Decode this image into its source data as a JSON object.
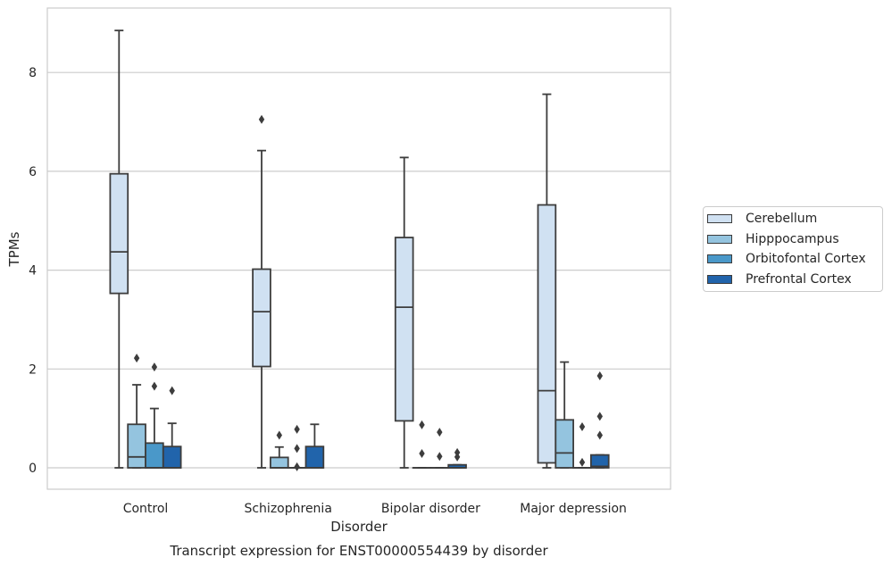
{
  "chart_data": {
    "type": "box",
    "title": "",
    "caption": "Transcript expression for ENST00000554439 by disorder",
    "xlabel": "Disorder",
    "ylabel": "TPMs",
    "ylim": [
      -0.42,
      9.3
    ],
    "yticks": [
      0,
      2,
      4,
      6,
      8
    ],
    "categories": [
      "Control",
      "Schizophrenia",
      "Bipolar disorder",
      "Major depression"
    ],
    "grid": "horizontal",
    "legend_position": "right",
    "series": [
      {
        "name": "Cerebellum",
        "color": "#d0e1f2",
        "boxes": [
          {
            "whisker_low": 0,
            "q1": 3.53,
            "median": 4.37,
            "q3": 5.95,
            "whisker_high": 8.85,
            "outliers": []
          },
          {
            "whisker_low": 0,
            "q1": 2.05,
            "median": 3.16,
            "q3": 4.02,
            "whisker_high": 6.42,
            "outliers": [
              7.05
            ]
          },
          {
            "whisker_low": 0,
            "q1": 0.95,
            "median": 3.25,
            "q3": 4.66,
            "whisker_high": 6.28,
            "outliers": []
          },
          {
            "whisker_low": 0,
            "q1": 0.1,
            "median": 1.56,
            "q3": 5.32,
            "whisker_high": 7.56,
            "outliers": []
          }
        ]
      },
      {
        "name": "Hipppocampus",
        "color": "#94c4df",
        "boxes": [
          {
            "whisker_low": 0,
            "q1": 0,
            "median": 0.22,
            "q3": 0.88,
            "whisker_high": 1.68,
            "outliers": [
              2.22
            ]
          },
          {
            "whisker_low": 0,
            "q1": 0,
            "median": 0,
            "q3": 0.21,
            "whisker_high": 0.42,
            "outliers": [
              0.66
            ]
          },
          {
            "whisker_low": 0,
            "q1": 0,
            "median": 0,
            "q3": 0,
            "whisker_high": 0,
            "outliers": [
              0.87,
              0.29
            ]
          },
          {
            "whisker_low": 0,
            "q1": 0,
            "median": 0.3,
            "q3": 0.97,
            "whisker_high": 2.14,
            "outliers": []
          }
        ]
      },
      {
        "name": "Orbitofontal Cortex",
        "color": "#4a98c9",
        "boxes": [
          {
            "whisker_low": 0,
            "q1": 0,
            "median": 0,
            "q3": 0.5,
            "whisker_high": 1.2,
            "outliers": [
              2.04,
              1.65
            ]
          },
          {
            "whisker_low": 0,
            "q1": 0,
            "median": 0,
            "q3": 0,
            "whisker_high": 0,
            "outliers": [
              0.78,
              0.39,
              0.02
            ]
          },
          {
            "whisker_low": 0,
            "q1": 0,
            "median": 0,
            "q3": 0,
            "whisker_high": 0,
            "outliers": [
              0.72,
              0.23
            ]
          },
          {
            "whisker_low": 0,
            "q1": 0,
            "median": 0,
            "q3": 0,
            "whisker_high": 0,
            "outliers": [
              0.83,
              0.11
            ]
          }
        ]
      },
      {
        "name": "Prefrontal Cortex",
        "color": "#2164ab",
        "boxes": [
          {
            "whisker_low": 0,
            "q1": 0,
            "median": 0,
            "q3": 0.43,
            "whisker_high": 0.9,
            "outliers": [
              1.56
            ]
          },
          {
            "whisker_low": 0,
            "q1": 0,
            "median": 0,
            "q3": 0.43,
            "whisker_high": 0.88,
            "outliers": []
          },
          {
            "whisker_low": 0,
            "q1": 0,
            "median": 0,
            "q3": 0.06,
            "whisker_high": 0.06,
            "outliers": [
              0.31,
              0.22
            ]
          },
          {
            "whisker_low": 0,
            "q1": 0,
            "median": 0.03,
            "q3": 0.26,
            "whisker_high": 0.26,
            "outliers": [
              1.86,
              1.04,
              0.66
            ]
          }
        ]
      }
    ]
  }
}
